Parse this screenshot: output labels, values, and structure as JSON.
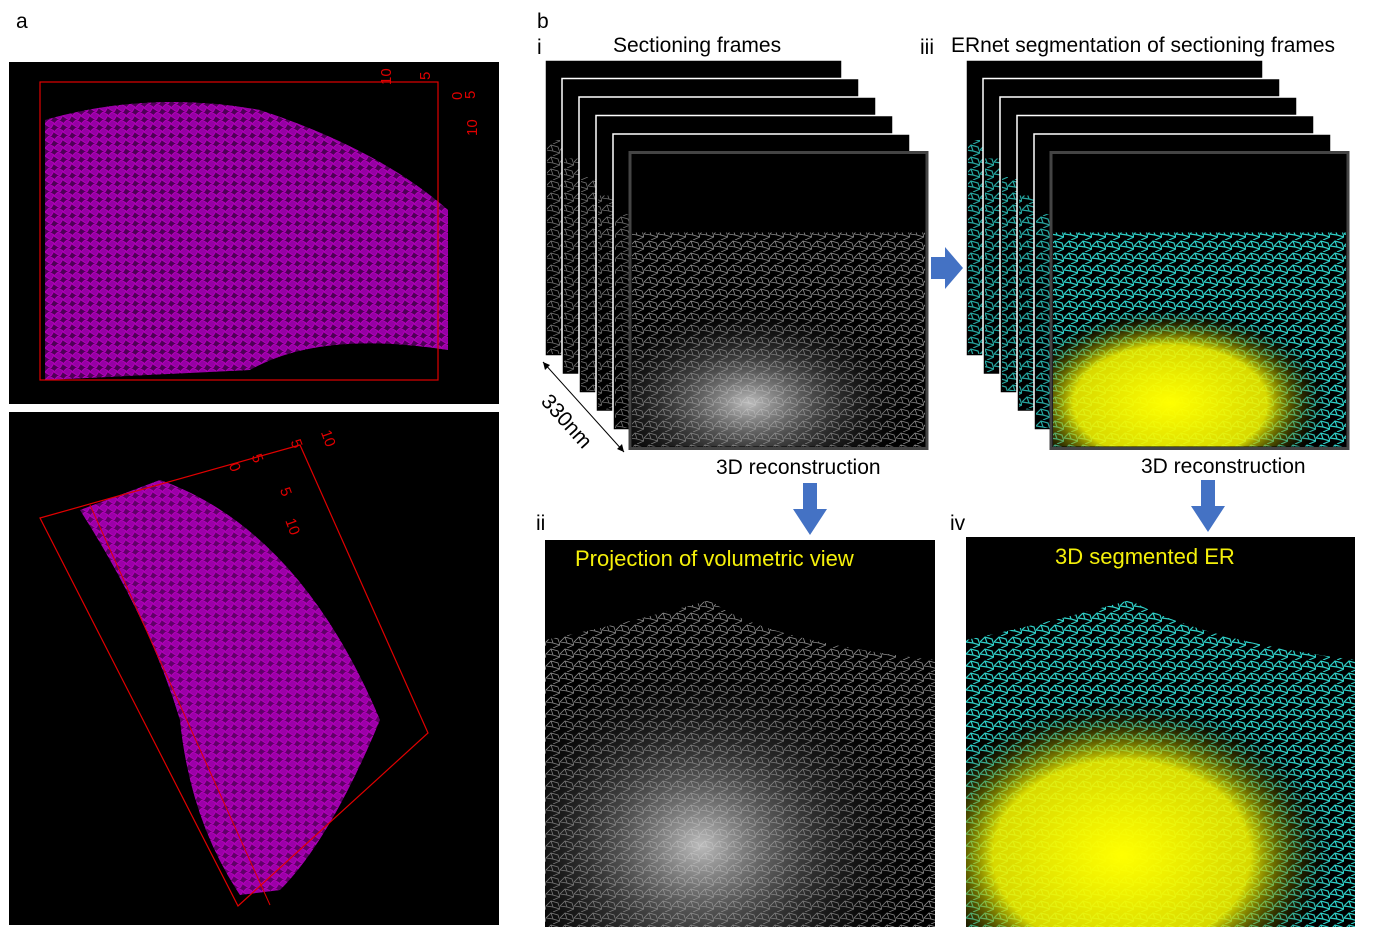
{
  "panel_a": {
    "label": "a",
    "top_axis_labels": [
      "10",
      "5",
      "5",
      "0",
      "10"
    ],
    "bottom_axis_labels": [
      "10",
      "5",
      "5",
      "0",
      "5",
      "10"
    ]
  },
  "panel_b": {
    "label": "b",
    "i": {
      "label": "i",
      "title": "Sectioning frames",
      "depth": "330nm",
      "caption": "3D reconstruction"
    },
    "iii": {
      "label": "iii",
      "title": "ERnet segmentation of sectioning frames",
      "caption": "3D reconstruction"
    },
    "ii": {
      "label": "ii",
      "title": "Projection of volumetric view"
    },
    "iv": {
      "label": "iv",
      "title": "3D segmented ER"
    }
  }
}
